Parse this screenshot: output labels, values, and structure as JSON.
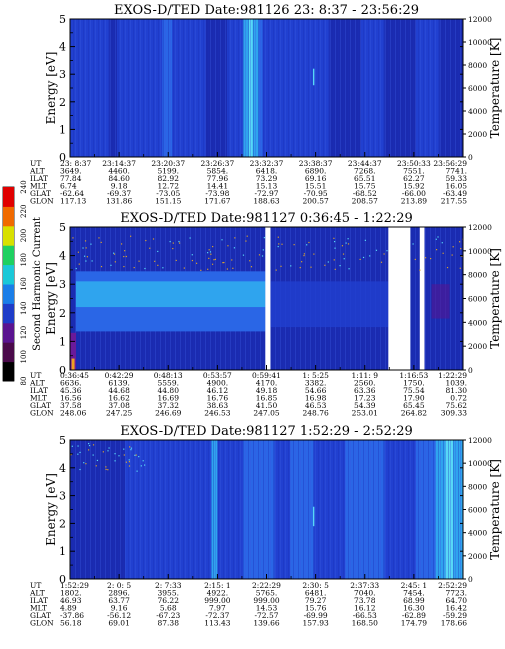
{
  "colorbar": {
    "label": "Second Harmonic Current",
    "ticks": [
      "80",
      "100",
      "120",
      "140",
      "160",
      "180",
      "200",
      "220",
      "240"
    ]
  },
  "chart_data": [
    {
      "type": "heatmap",
      "title": "EXOS-D/TED   Date:981126  23: 8:37 - 23:56:29",
      "ylabel": "Energy [eV]",
      "y2label": "Temperature [K]",
      "yticks": [
        "0",
        "1",
        "2",
        "3",
        "4",
        "5"
      ],
      "y2ticks": [
        "0",
        "2000",
        "4000",
        "6000",
        "8000",
        "10000",
        "12000"
      ],
      "ylim": [
        0,
        5
      ],
      "y2lim": [
        0,
        12000
      ],
      "row_labels": [
        "UT",
        "ALT",
        "ILAT",
        "MLT",
        "GLAT",
        "GLON"
      ],
      "columns": [
        [
          "23: 8:37",
          "3649.",
          "77.84",
          "6.74",
          "-62.64",
          "117.13"
        ],
        [
          "23:14:37",
          "4460.",
          "84.60",
          "9.18",
          "-69.37",
          "131.86"
        ],
        [
          "23:20:37",
          "5199.",
          "82.92",
          "12.72",
          "-73.05",
          "151.15"
        ],
        [
          "23:26:37",
          "5854.",
          "77.96",
          "14.41",
          "-73.98",
          "171.67"
        ],
        [
          "23:32:37",
          "6418.",
          "73.29",
          "15.13",
          "-72.97",
          "188.63"
        ],
        [
          "23:38:37",
          "6890.",
          "69.16",
          "15.51",
          "-70.95",
          "200.57"
        ],
        [
          "23:44:37",
          "7268.",
          "65.51",
          "15.75",
          "-68.52",
          "208.57"
        ],
        [
          "23:50:33",
          "7551.",
          "62.27",
          "15.92",
          "-66.00",
          "213.89"
        ],
        [
          "23:56:29",
          "7741.",
          "59.33",
          "16.05",
          "-63.49",
          "217.55"
        ]
      ],
      "bands": [
        [
          0.0,
          0.05,
          1
        ],
        [
          0.05,
          0.1,
          1
        ],
        [
          0.1,
          0.12,
          0
        ],
        [
          0.12,
          0.2,
          1
        ],
        [
          0.2,
          0.235,
          1
        ],
        [
          0.235,
          0.26,
          2
        ],
        [
          0.26,
          0.3,
          1
        ],
        [
          0.3,
          0.345,
          1
        ],
        [
          0.345,
          0.4,
          0
        ],
        [
          0.4,
          0.44,
          1
        ],
        [
          0.44,
          0.455,
          3
        ],
        [
          0.455,
          0.465,
          4
        ],
        [
          0.465,
          0.48,
          3
        ],
        [
          0.48,
          0.49,
          2
        ],
        [
          0.49,
          0.55,
          1
        ],
        [
          0.55,
          0.62,
          1
        ],
        [
          0.62,
          0.66,
          1
        ],
        [
          0.66,
          0.74,
          0
        ],
        [
          0.74,
          0.8,
          1
        ],
        [
          0.8,
          0.88,
          0
        ],
        [
          0.88,
          0.94,
          1
        ],
        [
          0.94,
          1.0,
          0
        ]
      ],
      "overlays": [
        [
          0.62,
          3.2,
          2.6,
          4
        ]
      ],
      "speckles": 0
    },
    {
      "type": "heatmap",
      "title": "EXOS-D/TED   Date:981127  0:36:45 - 1:22:29",
      "ylabel": "Energy [eV]",
      "y2label": "Temperature [K]",
      "yticks": [
        "0",
        "1",
        "2",
        "3",
        "4",
        "5"
      ],
      "y2ticks": [
        "0",
        "2000",
        "4000",
        "6000",
        "8000",
        "10000",
        "12000"
      ],
      "ylim": [
        0,
        5
      ],
      "y2lim": [
        0,
        12000
      ],
      "row_labels": [
        "UT",
        "ALT",
        "ILAT",
        "MLT",
        "GLAT",
        "GLON"
      ],
      "columns": [
        [
          "0:36:45",
          "6636.",
          "45.36",
          "16.56",
          "37.58",
          "248.06"
        ],
        [
          "0:42:29",
          "6139.",
          "44.68",
          "16.62",
          "37.08",
          "247.25"
        ],
        [
          "0:48:13",
          "5559.",
          "44.80",
          "16.69",
          "37.32",
          "246.69"
        ],
        [
          "0:53:57",
          "4900.",
          "46.12",
          "16.76",
          "38.63",
          "246.53"
        ],
        [
          "0:59:41",
          "4170.",
          "49.18",
          "16.85",
          "41.50",
          "247.05"
        ],
        [
          "1: 5:25",
          "3382.",
          "54.66",
          "16.98",
          "46.53",
          "248.76"
        ],
        [
          "1:11: 9",
          "2560.",
          "63.36",
          "17.23",
          "54.39",
          "253.01"
        ],
        [
          "1:16:53",
          "1750.",
          "75.54",
          "17.90",
          "65.45",
          "264.82"
        ],
        [
          "1:22:29",
          "1039.",
          "81.30",
          "0.72",
          "75.62",
          "309.33"
        ]
      ],
      "bands": [
        [
          0.0,
          1.0,
          0
        ]
      ],
      "gaps": [
        [
          0.497,
          0.51
        ],
        [
          0.81,
          0.866
        ],
        [
          0.89,
          0.902
        ]
      ],
      "region": [
        0.015,
        0.497,
        1.35,
        3.45,
        2
      ],
      "region_inner": [
        0.015,
        0.497,
        2.2,
        3.1,
        3
      ],
      "speckles": 1
    },
    {
      "type": "heatmap",
      "title": "EXOS-D/TED   Date:981127  1:52:29 - 2:52:29",
      "ylabel": "Energy [eV]",
      "y2label": "Temperature [K]",
      "yticks": [
        "0",
        "1",
        "2",
        "3",
        "4",
        "5"
      ],
      "y2ticks": [
        "0",
        "2000",
        "4000",
        "6000",
        "8000",
        "10000",
        "12000"
      ],
      "ylim": [
        0,
        5
      ],
      "y2lim": [
        0,
        12000
      ],
      "row_labels": [
        "UT",
        "ALT",
        "ILAT",
        "MLT",
        "GLAT",
        "GLON"
      ],
      "columns": [
        [
          "1:52:29",
          "1802.",
          "46.93",
          "4.89",
          "-37.86",
          "56.18"
        ],
        [
          "2: 0: 5",
          "2896.",
          "63.77",
          "9.16",
          "-56.12",
          "69.01"
        ],
        [
          "2: 7:33",
          "3955.",
          "76.22",
          "5.68",
          "-67.23",
          "87.38"
        ],
        [
          "2:15: 1",
          "4922.",
          "999.00",
          "7.97",
          "-72.37",
          "113.43"
        ],
        [
          "2:22:29",
          "5765.",
          "999.00",
          "14.53",
          "-72.57",
          "139.66"
        ],
        [
          "2:30: 5",
          "6481.",
          "79.27",
          "15.76",
          "-69.99",
          "157.93"
        ],
        [
          "2:37:33",
          "7040.",
          "73.78",
          "16.12",
          "-66.53",
          "168.50"
        ],
        [
          "2:45: 1",
          "7454.",
          "68.99",
          "16.30",
          "-62.89",
          "174.79"
        ],
        [
          "2:52:29",
          "7723.",
          "64.70",
          "16.42",
          "-59.29",
          "178.66"
        ]
      ],
      "bands": [
        [
          0.0,
          0.14,
          0
        ],
        [
          0.14,
          0.3,
          1
        ],
        [
          0.3,
          0.36,
          1
        ],
        [
          0.36,
          0.375,
          3
        ],
        [
          0.375,
          0.44,
          1
        ],
        [
          0.44,
          0.52,
          2
        ],
        [
          0.52,
          0.56,
          1
        ],
        [
          0.56,
          0.62,
          2
        ],
        [
          0.62,
          0.7,
          1
        ],
        [
          0.7,
          0.8,
          2
        ],
        [
          0.8,
          0.88,
          1
        ],
        [
          0.88,
          0.93,
          2
        ],
        [
          0.93,
          0.955,
          3
        ],
        [
          0.955,
          0.975,
          4
        ],
        [
          0.975,
          1.0,
          3
        ]
      ],
      "overlays": [
        [
          0.62,
          2.6,
          1.9,
          4
        ]
      ],
      "speckles": 2
    }
  ]
}
